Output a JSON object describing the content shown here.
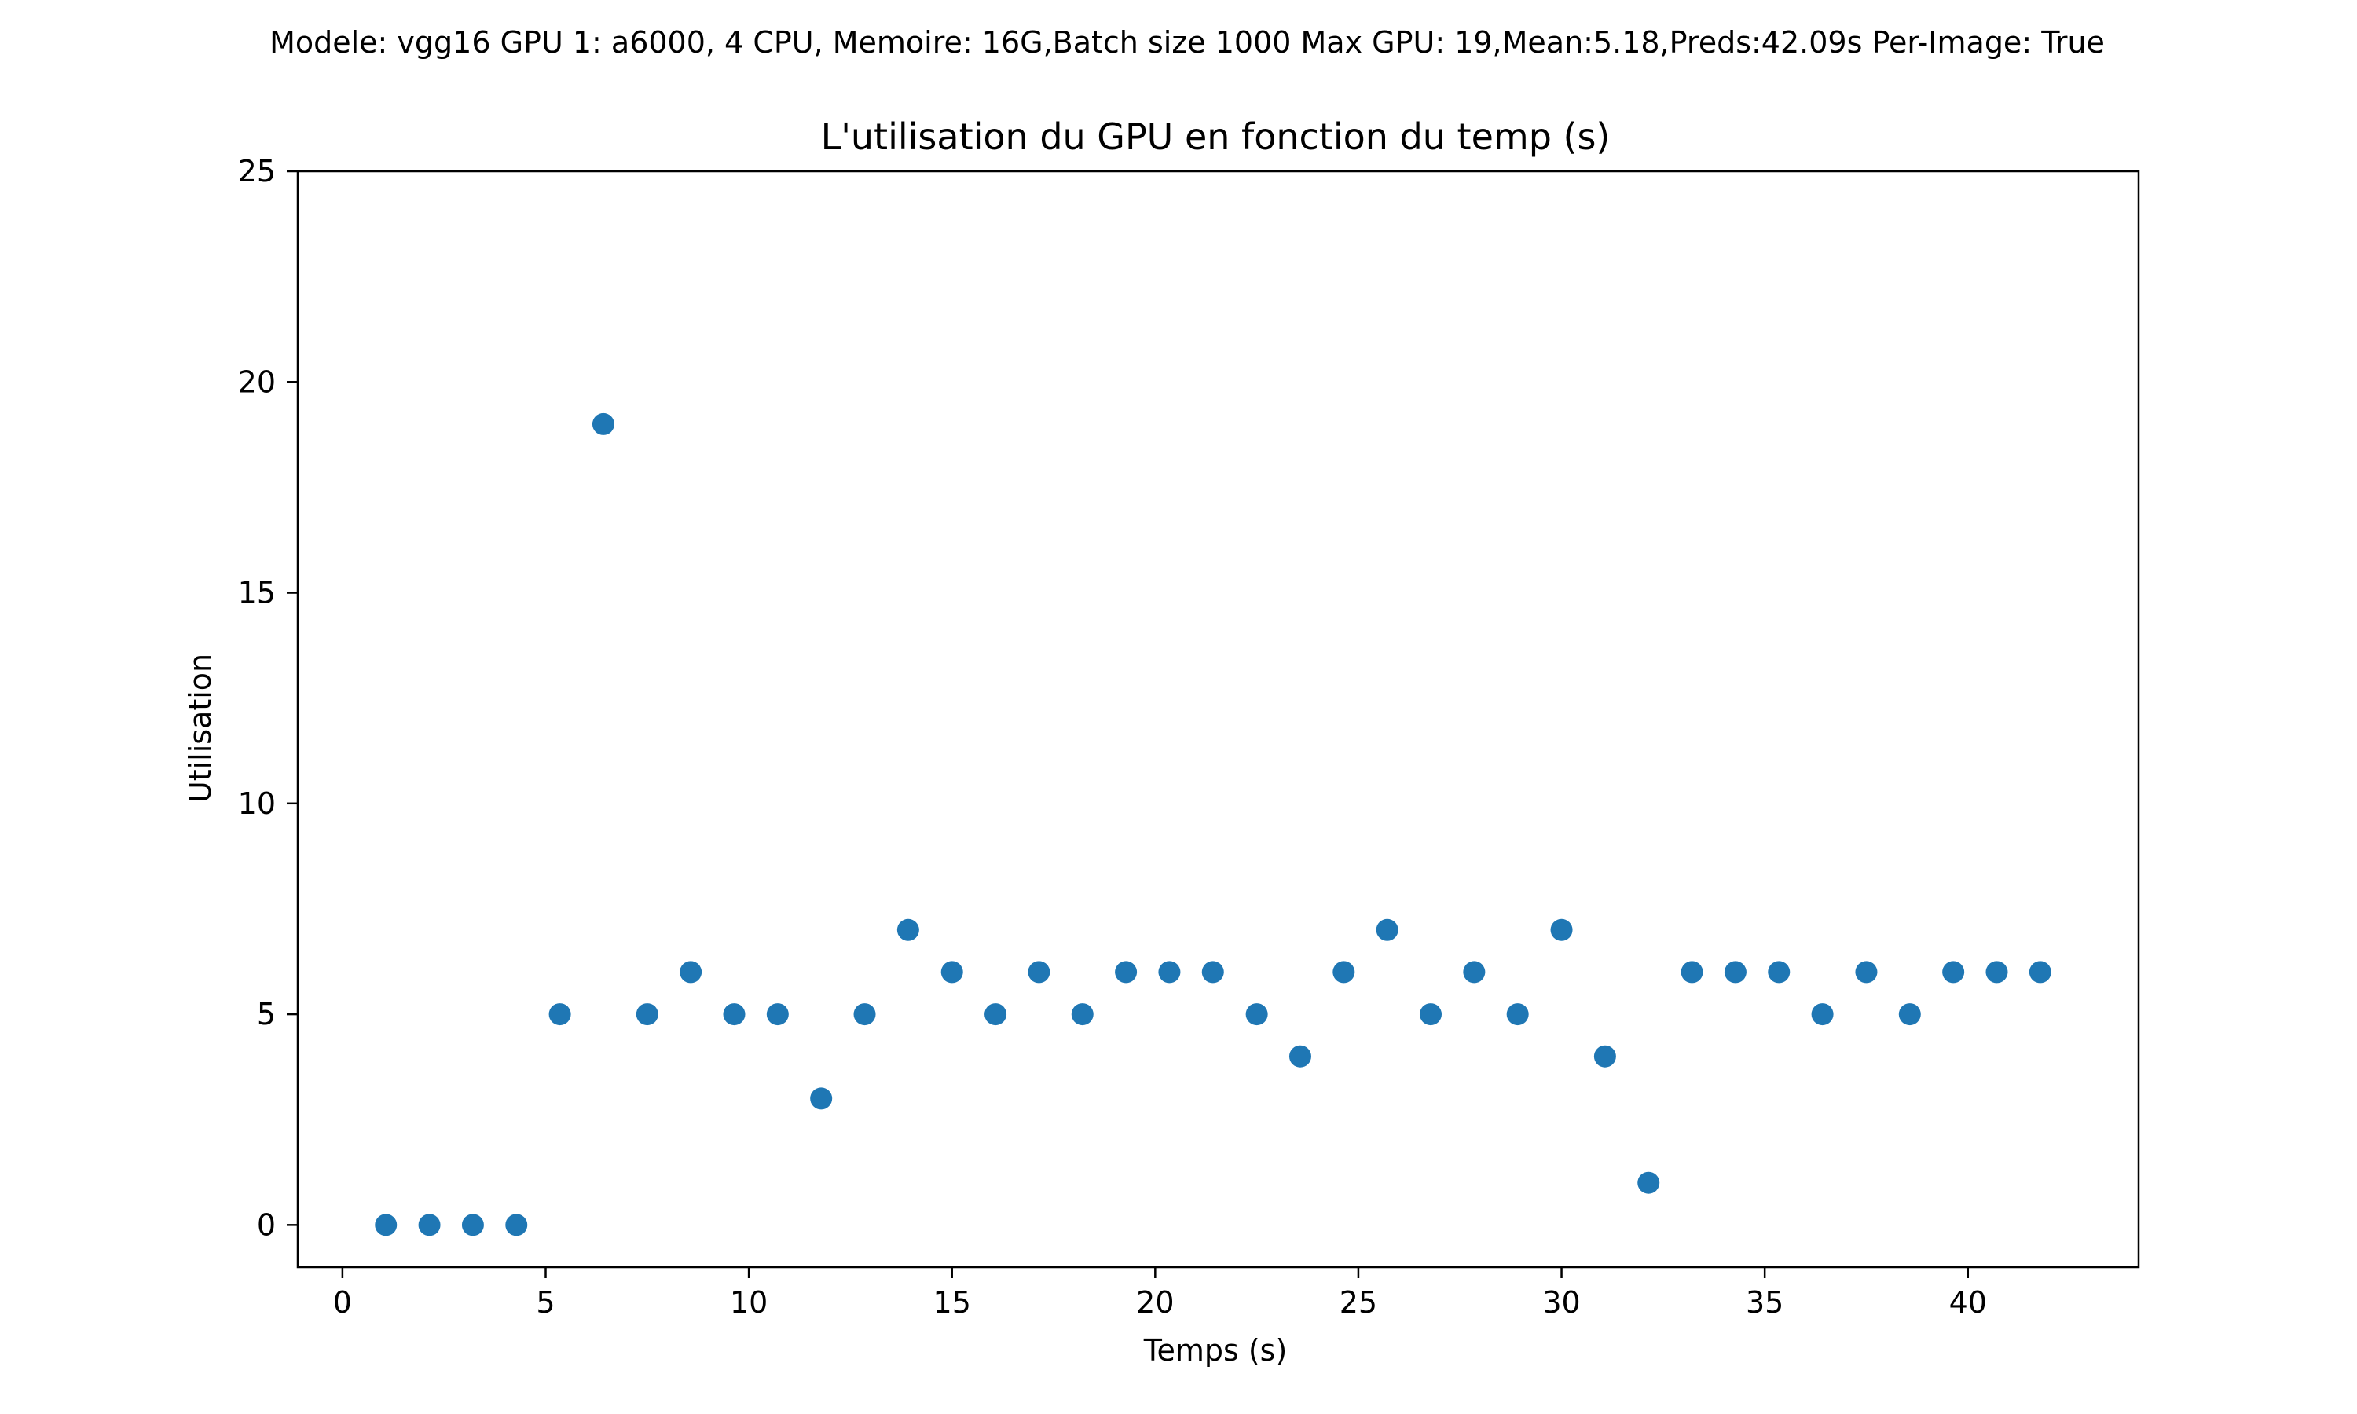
{
  "chart_data": {
    "type": "scatter",
    "suptitle": "Modele: vgg16 GPU 1: a6000, 4 CPU, Memoire: 16G,Batch size 1000 Max GPU: 19,Mean:5.18,Preds:42.09s Per-Image: True",
    "title": "L'utilisation du GPU  en fonction du temp (s)",
    "xlabel": "Temps (s)",
    "ylabel": "Utilisation",
    "xlim": [
      -1.1,
      44.2
    ],
    "ylim": [
      -1,
      25
    ],
    "xticks": [
      0,
      5,
      10,
      15,
      20,
      25,
      30,
      35,
      40
    ],
    "yticks": [
      0,
      5,
      10,
      15,
      20,
      25
    ],
    "grid": false,
    "legend": "none",
    "series": [
      {
        "color": "#1f77b4",
        "x": [
          1.07,
          2.14,
          3.21,
          4.28,
          5.35,
          6.42,
          7.5,
          8.57,
          9.64,
          10.71,
          11.78,
          12.85,
          13.92,
          15.0,
          16.07,
          17.14,
          18.21,
          19.28,
          20.35,
          21.42,
          22.5,
          23.57,
          24.64,
          25.71,
          26.78,
          27.85,
          28.92,
          30.0,
          31.07,
          32.14,
          33.21,
          34.28,
          35.35,
          36.42,
          37.5,
          38.57,
          39.64,
          40.71,
          41.78
        ],
        "y": [
          0,
          0,
          0,
          0,
          5,
          19,
          5,
          6,
          5,
          5,
          3,
          5,
          7,
          6,
          5,
          6,
          5,
          6,
          6,
          6,
          5,
          4,
          6,
          7,
          5,
          6,
          5,
          7,
          4,
          1,
          6,
          6,
          6,
          5,
          6,
          5,
          6,
          6,
          6
        ]
      }
    ]
  }
}
